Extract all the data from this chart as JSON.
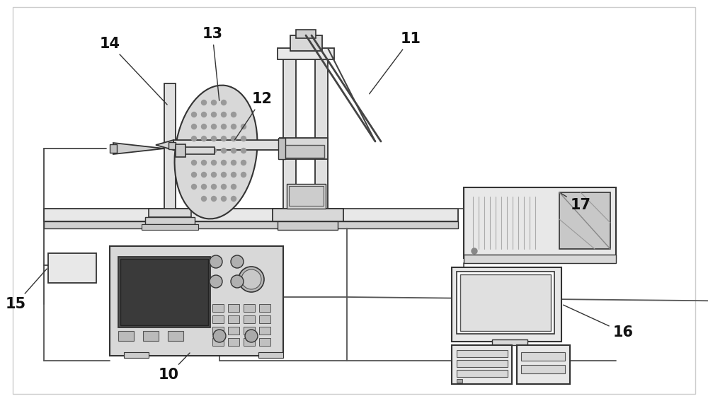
{
  "background_color": "#ffffff",
  "figsize": [
    10.0,
    5.67
  ],
  "dpi": 100,
  "line_color": "#444444",
  "label_color": "#111111"
}
